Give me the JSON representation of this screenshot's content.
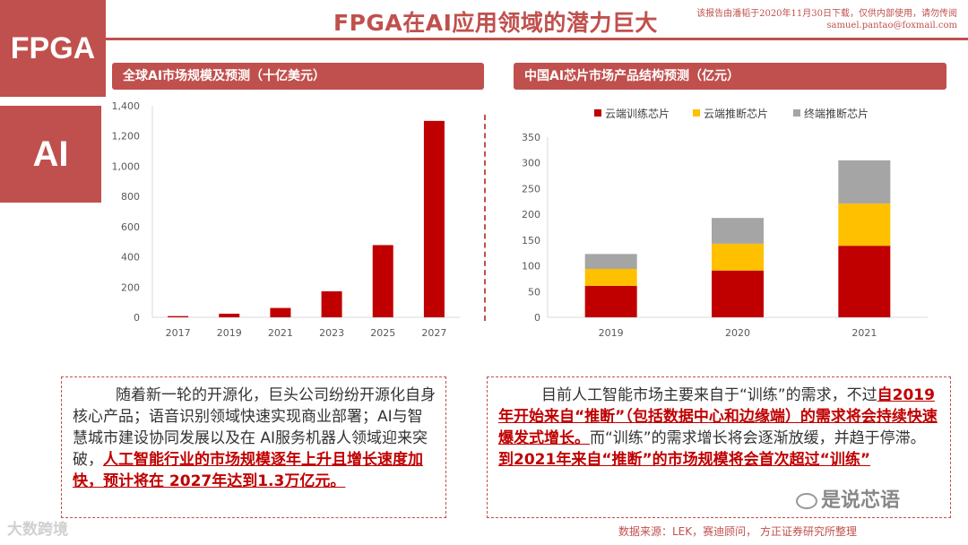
{
  "side": {
    "fpga": "FPGA",
    "ai": "AI"
  },
  "title": "FPGA在AI应用领域的潜力巨大",
  "watermark_top": {
    "line1": "该报告由潘韬于2020年11月30日下载，仅供内部使用，请勿传阅",
    "line2": "samuel.pantao@foxmail.com"
  },
  "left_chart_header": "全球AI市场规模及预测（十亿美元）",
  "right_chart_header": "中国AI芯片市场产品结构预测（亿元）",
  "colors": {
    "accent": "#c0504d",
    "bar_red": "#c00000",
    "bar_yellow": "#ffc000",
    "bar_gray": "#a5a5a5"
  },
  "chart_data": [
    {
      "type": "bar",
      "title": "全球AI市场规模及预测（十亿美元）",
      "categories": [
        "2017",
        "2019",
        "2021",
        "2023",
        "2025",
        "2027"
      ],
      "values": [
        8,
        24,
        62,
        172,
        478,
        1300
      ],
      "ylim": [
        0,
        1400
      ],
      "yticks": [
        "0",
        "200",
        "400",
        "600",
        "800",
        "1,000",
        "1,200",
        "1,400"
      ],
      "ytick_values": [
        0,
        200,
        400,
        600,
        800,
        1000,
        1200,
        1400
      ]
    },
    {
      "type": "bar",
      "stacked": true,
      "title": "中国AI芯片市场产品结构预测（亿元）",
      "categories": [
        "2019",
        "2020",
        "2021"
      ],
      "series": [
        {
          "name": "云端训练芯片",
          "values": [
            61,
            91,
            139
          ]
        },
        {
          "name": "云端推断芯片",
          "values": [
            33,
            52,
            82
          ]
        },
        {
          "name": "终端推断芯片",
          "values": [
            29,
            50,
            84
          ]
        }
      ],
      "ylim": [
        0,
        350
      ],
      "yticks": [
        "0",
        "50",
        "100",
        "150",
        "200",
        "250",
        "300",
        "350"
      ],
      "ytick_values": [
        0,
        50,
        100,
        150,
        200,
        250,
        300,
        350
      ],
      "legend": "top"
    }
  ],
  "left_text": {
    "p1": "随着新一轮的开源化，巨头公司纷纷开源化自身核心产品；语音识别领域快速实现商业部署；AI与智慧城市建设协同发展以及在 AI服务机器人领域迎来突破，",
    "p2": "人工智能行业的市场规模逐年上升且增长速度加快，预计将在 2027年达到1.3万亿元。"
  },
  "right_text": {
    "p1": "目前人工智能市场主要来自于“训练”的需求，不过",
    "p2": "自2019年开始来自“推断”（包括数据中心和边缘端）的需求将会持续快速爆发式增长。",
    "p3": "而“训练”的需求增长将会逐渐放缓，并趋于停滞。 ",
    "p4": "到2021年来自“推断”的市场规模将会首次超过“训练”"
  },
  "source": "数据来源：LEK，赛迪顾问， 方正证券研究所整理",
  "wm_left": "大数跨境",
  "wm_right": "是说芯语"
}
